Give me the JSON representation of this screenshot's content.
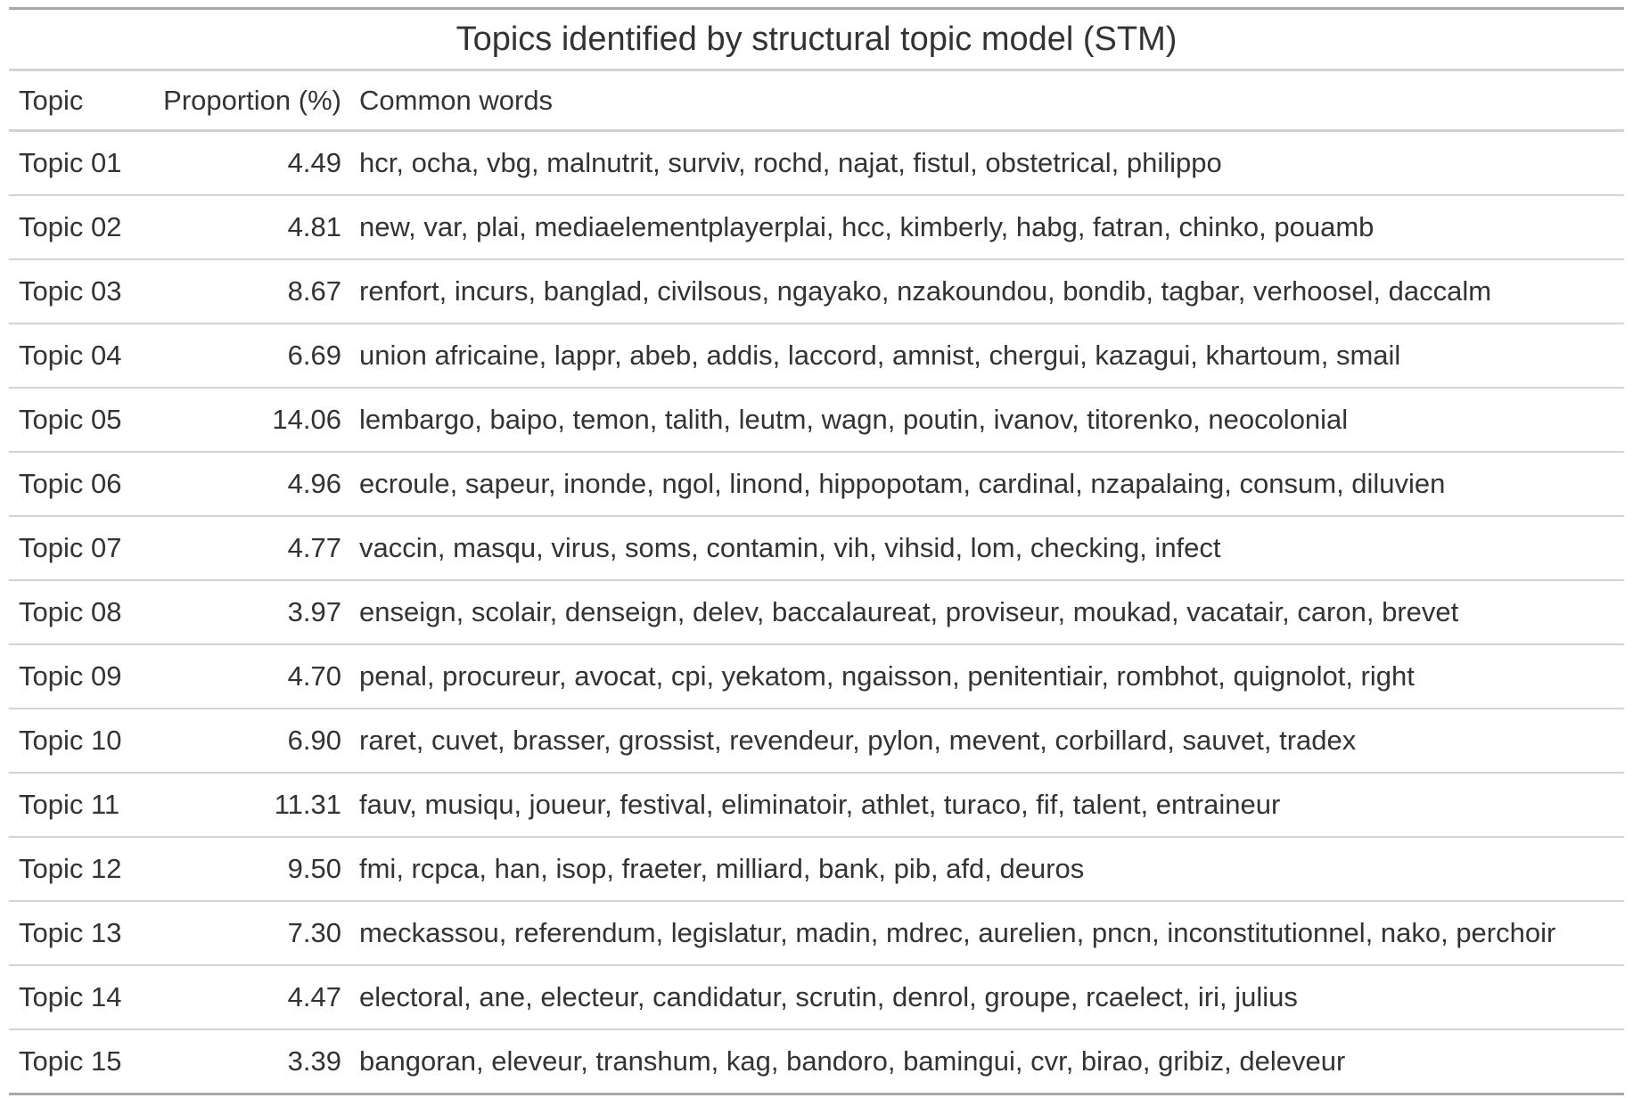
{
  "table": {
    "title": "Topics identified by structural topic model (STM)",
    "columns": {
      "topic": "Topic",
      "proportion": "Proportion (%)",
      "words": "Common words"
    },
    "rows": [
      {
        "topic": "Topic 01",
        "proportion": "4.49",
        "words": "hcr, ocha, vbg, malnutrit, surviv, rochd, najat, fistul, obstetrical, philippo"
      },
      {
        "topic": "Topic 02",
        "proportion": "4.81",
        "words": "new, var, plai, mediaelementplayerplai, hcc, kimberly, habg, fatran, chinko, pouamb"
      },
      {
        "topic": "Topic 03",
        "proportion": "8.67",
        "words": "renfort, incurs, banglad, civilsous, ngayako, nzakoundou, bondib, tagbar, verhoosel, daccalm"
      },
      {
        "topic": "Topic 04",
        "proportion": "6.69",
        "words": "union africaine, lappr, abeb, addis, laccord, amnist, chergui, kazagui, khartoum, smail"
      },
      {
        "topic": "Topic 05",
        "proportion": "14.06",
        "words": "lembargo, baipo, temon, talith, leutm, wagn, poutin, ivanov, titorenko, neocolonial"
      },
      {
        "topic": "Topic 06",
        "proportion": "4.96",
        "words": "ecroule, sapeur, inonde, ngol, linond, hippopotam, cardinal, nzapalaing, consum, diluvien"
      },
      {
        "topic": "Topic 07",
        "proportion": "4.77",
        "words": "vaccin, masqu, virus, soms, contamin, vih, vihsid, lom, checking, infect"
      },
      {
        "topic": "Topic 08",
        "proportion": "3.97",
        "words": "enseign, scolair, denseign, delev, baccalaureat, proviseur, moukad, vacatair, caron, brevet"
      },
      {
        "topic": "Topic 09",
        "proportion": "4.70",
        "words": "penal, procureur, avocat, cpi, yekatom, ngaisson, penitentiair, rombhot, quignolot, right"
      },
      {
        "topic": "Topic 10",
        "proportion": "6.90",
        "words": "raret, cuvet, brasser, grossist, revendeur, pylon, mevent, corbillard, sauvet, tradex"
      },
      {
        "topic": "Topic 11",
        "proportion": "11.31",
        "words": "fauv, musiqu, joueur, festival, eliminatoir, athlet, turaco, fif, talent, entraineur"
      },
      {
        "topic": "Topic 12",
        "proportion": "9.50",
        "words": "fmi, rcpca, han, isop, fraeter, milliard, bank, pib, afd, deuros"
      },
      {
        "topic": "Topic 13",
        "proportion": "7.30",
        "words": "meckassou, referendum, legislatur, madin, mdrec, aurelien, pncn, inconstitutionnel, nako, perchoir"
      },
      {
        "topic": "Topic 14",
        "proportion": "4.47",
        "words": "electoral, ane, electeur, candidatur, scrutin, denrol, groupe, rcaelect, iri, julius"
      },
      {
        "topic": "Topic 15",
        "proportion": "3.39",
        "words": "bangoran, eleveur, transhum, kag, bandoro, bamingui, cvr, birao, gribiz, deleveur"
      }
    ]
  }
}
